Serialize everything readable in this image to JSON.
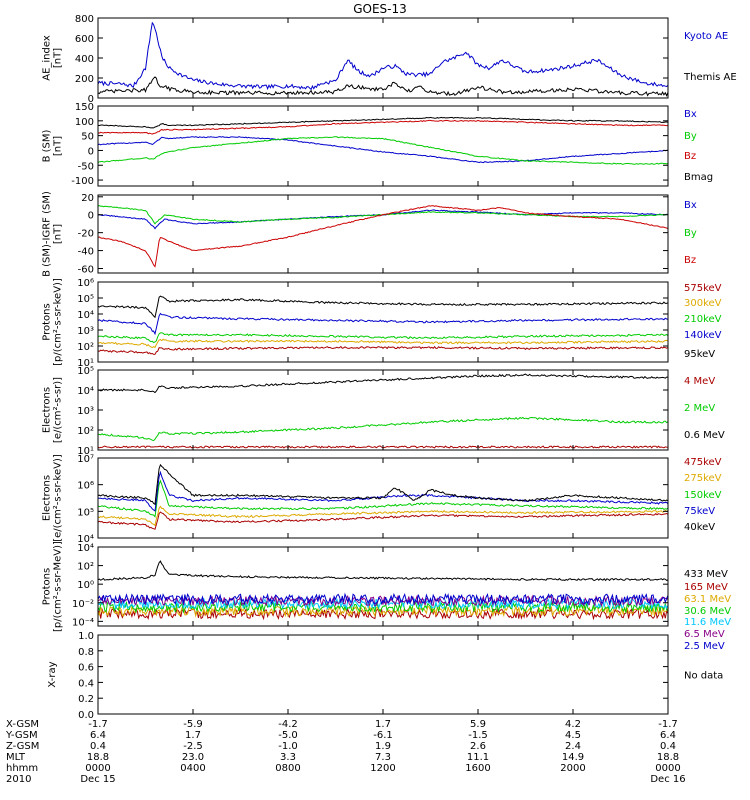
{
  "title": "GOES-13",
  "chart_data": [
    {
      "type": "line",
      "ylabel": [
        "AE_index",
        "[nT]"
      ],
      "ylim": [
        0,
        800
      ],
      "scale": "linear",
      "yticks": [
        0,
        200,
        400,
        600,
        800
      ],
      "ytick_labels": [
        "0",
        "200",
        "400",
        "600",
        "800"
      ],
      "series": [
        {
          "name": "Kyoto AE",
          "color": "#0000cc",
          "t": [
            0,
            1,
            1.5,
            2,
            2.3,
            2.5,
            2.7,
            3,
            3.5,
            4,
            5,
            6,
            7,
            8,
            9,
            9.5,
            10,
            10.5,
            11,
            11.5,
            12,
            12.5,
            13,
            13.5,
            14,
            14.5,
            15,
            15.5,
            16,
            16.5,
            17,
            18,
            19,
            20,
            21,
            22,
            23,
            24
          ],
          "v": [
            150,
            140,
            120,
            300,
            780,
            600,
            400,
            300,
            230,
            180,
            140,
            120,
            110,
            120,
            100,
            150,
            170,
            380,
            260,
            220,
            300,
            320,
            240,
            230,
            240,
            360,
            400,
            460,
            330,
            300,
            380,
            260,
            280,
            320,
            380,
            230,
            150,
            120
          ]
        },
        {
          "name": "Themis AE",
          "color": "#000000",
          "t": [
            0,
            2,
            2.4,
            2.6,
            3,
            4,
            6,
            8,
            10,
            10.5,
            12,
            12.5,
            13,
            13.5,
            14,
            15,
            16,
            17,
            18,
            20,
            22,
            24
          ],
          "v": [
            60,
            80,
            200,
            130,
            90,
            60,
            50,
            50,
            60,
            120,
            80,
            150,
            60,
            110,
            60,
            40,
            110,
            60,
            60,
            90,
            50,
            40
          ]
        }
      ]
    },
    {
      "type": "line",
      "ylabel": [
        "B (SM)",
        "[nT]"
      ],
      "ylim": [
        -120,
        150
      ],
      "scale": "linear",
      "yticks": [
        -100,
        -50,
        0,
        50,
        100,
        150
      ],
      "ytick_labels": [
        "-100",
        "-50",
        "0",
        "50",
        "100",
        "150"
      ],
      "series": [
        {
          "name": "Bx",
          "color": "#0000cc",
          "t": [
            0,
            2,
            2.3,
            2.7,
            3,
            4,
            6,
            8,
            10,
            12,
            14,
            16,
            18,
            20,
            22,
            24
          ],
          "v": [
            20,
            28,
            20,
            45,
            40,
            45,
            45,
            35,
            15,
            -5,
            -20,
            -40,
            -35,
            -20,
            -10,
            0
          ]
        },
        {
          "name": "By",
          "color": "#00cc00",
          "t": [
            0,
            2,
            2.3,
            2.7,
            3,
            4,
            6,
            8,
            10,
            12,
            14,
            16,
            18,
            20,
            22,
            24
          ],
          "v": [
            -40,
            -25,
            -30,
            -10,
            -5,
            10,
            25,
            40,
            45,
            40,
            10,
            -20,
            -35,
            -40,
            -45,
            -45
          ]
        },
        {
          "name": "Bz",
          "color": "#cc0000",
          "t": [
            0,
            2,
            2.3,
            2.7,
            3,
            4,
            6,
            8,
            10,
            12,
            14,
            16,
            18,
            20,
            22,
            24
          ],
          "v": [
            60,
            60,
            55,
            70,
            70,
            70,
            75,
            80,
            90,
            95,
            100,
            100,
            95,
            90,
            85,
            85
          ]
        },
        {
          "name": "Bmag",
          "color": "#000000",
          "t": [
            0,
            2,
            2.3,
            2.7,
            3,
            4,
            6,
            8,
            10,
            12,
            14,
            16,
            18,
            20,
            22,
            24
          ],
          "v": [
            85,
            80,
            75,
            90,
            85,
            85,
            90,
            95,
            100,
            105,
            110,
            110,
            105,
            100,
            100,
            95
          ]
        }
      ]
    },
    {
      "type": "line",
      "ylabel": [
        "B (SM)-IGRF (SM)",
        "[nT]"
      ],
      "ylim": [
        -65,
        22
      ],
      "scale": "linear",
      "yticks": [
        -60,
        -40,
        -20,
        0,
        20
      ],
      "ytick_labels": [
        "-60",
        "-40",
        "-20",
        "0",
        "20"
      ],
      "series": [
        {
          "name": "Bx",
          "color": "#0000cc",
          "t": [
            0,
            2,
            2.4,
            2.8,
            4,
            6,
            8,
            10,
            12,
            14,
            16,
            18,
            20,
            22,
            24
          ],
          "v": [
            0,
            -5,
            -15,
            -5,
            -10,
            -8,
            -5,
            -2,
            0,
            5,
            3,
            0,
            2,
            2,
            0
          ]
        },
        {
          "name": "By",
          "color": "#00cc00",
          "t": [
            0,
            2,
            2.4,
            2.8,
            4,
            6,
            8,
            10,
            12,
            14,
            16,
            18,
            20,
            22,
            24
          ],
          "v": [
            10,
            5,
            -10,
            0,
            -5,
            -8,
            -5,
            -3,
            0,
            3,
            2,
            0,
            -2,
            -2,
            0
          ]
        },
        {
          "name": "Bz",
          "color": "#cc0000",
          "t": [
            0,
            1,
            2,
            2.4,
            2.6,
            3,
            4,
            6,
            8,
            10,
            12,
            14,
            16,
            17,
            18,
            20,
            22,
            24
          ],
          "v": [
            -25,
            -30,
            -40,
            -58,
            -25,
            -30,
            -40,
            -35,
            -25,
            -12,
            0,
            10,
            5,
            8,
            2,
            -2,
            -5,
            -15
          ]
        }
      ]
    },
    {
      "type": "line",
      "ylabel": [
        "Protons",
        "[p/(cm²-s-sr-keV)]"
      ],
      "ylim": [
        1,
        6
      ],
      "scale": "log",
      "yticks": [
        1,
        2,
        3,
        4,
        5,
        6
      ],
      "ytick_labels": [
        "10¹",
        "10²",
        "10³",
        "10⁴",
        "10⁵",
        "10⁶"
      ],
      "series": [
        {
          "name": "575keV",
          "color": "#aa0000",
          "t": [
            0,
            2,
            2.4,
            2.6,
            3,
            6,
            10,
            14,
            18,
            24
          ],
          "v": [
            1.7,
            1.6,
            1.5,
            1.9,
            1.8,
            1.85,
            1.9,
            1.9,
            1.85,
            1.9
          ]
        },
        {
          "name": "300keV",
          "color": "#ddaa00",
          "t": [
            0,
            2,
            2.4,
            2.6,
            3,
            6,
            10,
            14,
            18,
            24
          ],
          "v": [
            2.2,
            2.1,
            1.9,
            2.4,
            2.3,
            2.3,
            2.3,
            2.2,
            2.2,
            2.3
          ]
        },
        {
          "name": "210keV",
          "color": "#00cc00",
          "t": [
            0,
            2,
            2.4,
            2.6,
            3,
            6,
            10,
            14,
            18,
            24
          ],
          "v": [
            2.6,
            2.5,
            2.2,
            2.8,
            2.7,
            2.7,
            2.6,
            2.5,
            2.6,
            2.7
          ]
        },
        {
          "name": "140keV",
          "color": "#0000cc",
          "t": [
            0,
            2,
            2.4,
            2.6,
            3,
            6,
            10,
            14,
            18,
            24
          ],
          "v": [
            3.6,
            3.4,
            2.8,
            4.0,
            3.8,
            3.7,
            3.6,
            3.5,
            3.6,
            3.7
          ]
        },
        {
          "name": "95keV",
          "color": "#000000",
          "t": [
            0,
            2,
            2.4,
            2.6,
            3,
            6,
            10,
            14,
            18,
            24
          ],
          "v": [
            4.5,
            4.4,
            3.8,
            5.2,
            4.8,
            4.9,
            4.7,
            4.6,
            4.6,
            4.7
          ]
        }
      ]
    },
    {
      "type": "line",
      "ylabel": [
        "Electrons",
        "[e/(cm²-s-sr)]"
      ],
      "ylim": [
        1,
        5
      ],
      "scale": "log",
      "yticks": [
        1,
        2,
        3,
        4,
        5
      ],
      "ytick_labels": [
        "10¹",
        "10²",
        "10³",
        "10⁴",
        "10⁵"
      ],
      "series": [
        {
          "name": "4 MeV",
          "color": "#aa0000",
          "t": [
            0,
            24
          ],
          "v": [
            1.15,
            1.15
          ]
        },
        {
          "name": "2 MeV",
          "color": "#00cc00",
          "t": [
            0,
            2,
            2.4,
            2.6,
            3,
            6,
            10,
            14,
            16,
            18,
            20,
            22,
            24
          ],
          "v": [
            1.8,
            1.6,
            1.5,
            1.9,
            1.8,
            1.9,
            2.1,
            2.4,
            2.5,
            2.6,
            2.5,
            2.4,
            2.4
          ]
        },
        {
          "name": "0.6 MeV",
          "color": "#000000",
          "t": [
            0,
            2,
            2.4,
            2.6,
            3,
            6,
            10,
            14,
            16,
            18,
            20,
            22,
            24
          ],
          "v": [
            4.0,
            4.0,
            3.9,
            4.2,
            4.1,
            4.2,
            4.4,
            4.6,
            4.7,
            4.75,
            4.7,
            4.65,
            4.6
          ]
        }
      ]
    },
    {
      "type": "line",
      "ylabel": [
        "Electrons",
        "[e/(cm²-s-sr-keV)]"
      ],
      "ylim": [
        4,
        7
      ],
      "scale": "log",
      "yticks": [
        4,
        5,
        6,
        7
      ],
      "ytick_labels": [
        "10⁴",
        "10⁵",
        "10⁶",
        "10⁷"
      ],
      "series": [
        {
          "name": "475keV",
          "color": "#aa0000",
          "t": [
            0,
            2,
            2.4,
            2.6,
            3,
            6,
            10,
            14,
            18,
            24
          ],
          "v": [
            4.6,
            4.5,
            4.3,
            5.0,
            4.7,
            4.6,
            4.7,
            4.85,
            4.8,
            4.9
          ]
        },
        {
          "name": "275keV",
          "color": "#ddaa00",
          "t": [
            0,
            2,
            2.4,
            2.6,
            3,
            6,
            10,
            14,
            18,
            24
          ],
          "v": [
            4.8,
            4.7,
            4.5,
            5.2,
            4.9,
            4.8,
            4.9,
            5.0,
            4.95,
            5.0
          ]
        },
        {
          "name": "150keV",
          "color": "#00cc00",
          "t": [
            0,
            2,
            2.4,
            2.6,
            3,
            6,
            10,
            14,
            18,
            24
          ],
          "v": [
            5.2,
            5.0,
            4.8,
            6.2,
            5.2,
            5.1,
            5.1,
            5.3,
            5.2,
            5.1
          ]
        },
        {
          "name": "75keV",
          "color": "#0000cc",
          "t": [
            0,
            2,
            2.4,
            2.6,
            3,
            4,
            6,
            10,
            13,
            14,
            16,
            18,
            20,
            24
          ],
          "v": [
            5.5,
            5.4,
            5.0,
            6.5,
            5.6,
            5.4,
            5.5,
            5.4,
            5.6,
            5.6,
            5.5,
            5.4,
            5.4,
            5.3
          ]
        },
        {
          "name": "40keV",
          "color": "#000000",
          "t": [
            0,
            2,
            2.4,
            2.6,
            3,
            4,
            6,
            10,
            12,
            12.5,
            13,
            13.3,
            14,
            15,
            16,
            18,
            20,
            24
          ],
          "v": [
            5.6,
            5.5,
            5.3,
            6.8,
            6.4,
            5.6,
            5.6,
            5.5,
            5.5,
            5.9,
            5.6,
            5.4,
            5.8,
            5.6,
            5.5,
            5.4,
            5.6,
            5.4
          ]
        }
      ]
    },
    {
      "type": "line",
      "ylabel": [
        "Protons",
        "[p/(cm²-s-sr-MeV)]"
      ],
      "ylim": [
        -4.5,
        4
      ],
      "scale": "log",
      "yticks": [
        -4,
        -2,
        0,
        2,
        4
      ],
      "ytick_labels": [
        "10⁻⁴",
        "10⁻²",
        "10⁰",
        "10²",
        "10⁴"
      ],
      "series": [
        {
          "name": "433 MeV",
          "color": "#000000",
          "t": [
            0,
            2,
            2.4,
            2.6,
            3,
            6,
            10,
            14,
            18,
            24
          ],
          "v": [
            0.5,
            0.7,
            1.0,
            2.5,
            1.0,
            0.8,
            0.7,
            0.6,
            0.5,
            0.5
          ]
        },
        {
          "name": "165 MeV",
          "color": "#aa0000",
          "t": [
            0,
            24
          ],
          "v": [
            -3.2,
            -3.2
          ]
        },
        {
          "name": "63.1 MeV",
          "color": "#ddaa00",
          "t": [
            0,
            24
          ],
          "v": [
            -2.9,
            -2.9
          ]
        },
        {
          "name": "30.6 MeV",
          "color": "#00cc00",
          "t": [
            0,
            24
          ],
          "v": [
            -2.5,
            -2.5
          ]
        },
        {
          "name": "11.6 MeV",
          "color": "#00c8ff",
          "t": [
            0,
            24
          ],
          "v": [
            -2.1,
            -2.1
          ]
        },
        {
          "name": "6.5 MeV",
          "color": "#880088",
          "t": [
            0,
            24
          ],
          "v": [
            -1.8,
            -1.8
          ]
        },
        {
          "name": "2.5 MeV",
          "color": "#0000cc",
          "t": [
            0,
            24
          ],
          "v": [
            -1.6,
            -1.6
          ]
        }
      ]
    },
    {
      "type": "line",
      "ylabel": [
        "X-ray"
      ],
      "ylim": [
        0,
        1
      ],
      "scale": "linear",
      "yticks": [
        0,
        0.2,
        0.4,
        0.6,
        0.8,
        1.0
      ],
      "ytick_labels": [
        "0.0",
        "0.2",
        "0.4",
        "0.6",
        "0.8",
        "1.0"
      ],
      "series": [],
      "note": "No data"
    }
  ],
  "footer": {
    "row_labels": [
      "X-GSM",
      "Y-GSM",
      "Z-GSM",
      "MLT",
      "hhmm",
      "2010"
    ],
    "columns": [
      [
        "-1.7",
        "6.4",
        "0.4",
        "18.8",
        "0000",
        "Dec 15"
      ],
      [
        "-5.9",
        "1.7",
        "-2.5",
        "23.0",
        "0400",
        ""
      ],
      [
        "-4.2",
        "-5.0",
        "-1.0",
        "3.3",
        "0800",
        ""
      ],
      [
        "1.7",
        "-6.1",
        "1.9",
        "7.3",
        "1200",
        ""
      ],
      [
        "5.9",
        "-1.5",
        "2.6",
        "11.1",
        "1600",
        ""
      ],
      [
        "4.2",
        "4.5",
        "2.4",
        "14.9",
        "2000",
        ""
      ],
      [
        "-1.7",
        "6.4",
        "0.4",
        "18.8",
        "0000",
        "Dec 16"
      ]
    ]
  }
}
